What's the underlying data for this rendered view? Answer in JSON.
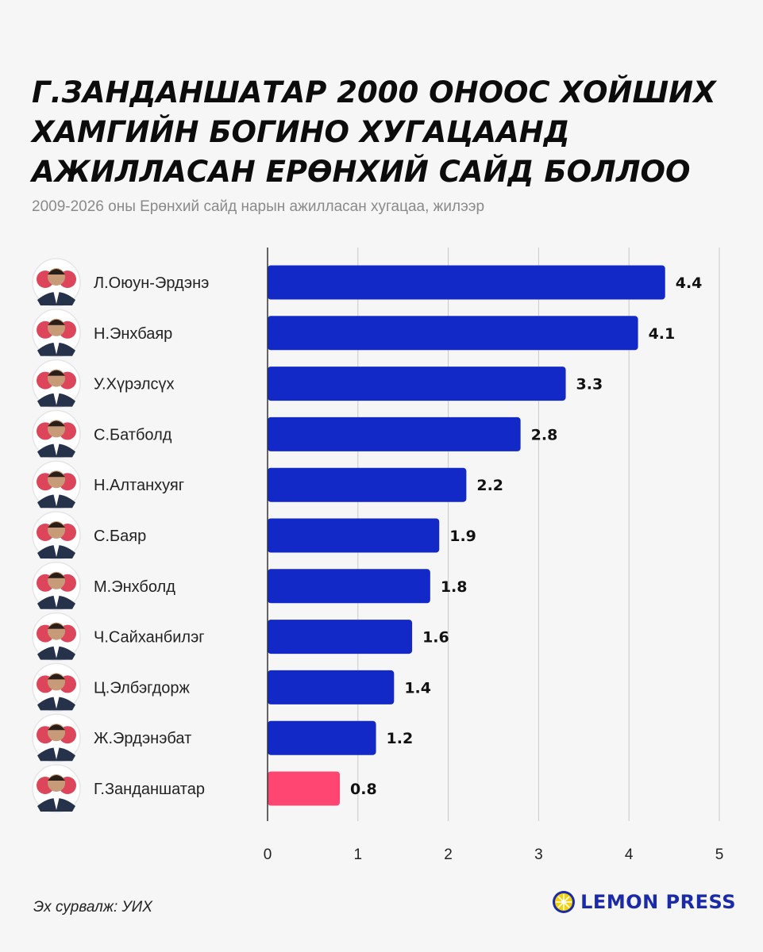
{
  "header": {
    "title_lines": [
      "Г.ЗАНДАНШАТАР 2000 ОНООС ХОЙШИХ",
      "ХАМГИЙН БОГИНО ХУГАЦААНД",
      "АЖИЛЛАСАН ЕРӨНХИЙ САЙД БОЛЛОО"
    ],
    "subtitle": "2009-2026 оны Ерөнхий сайд нарын ажилласан хугацаа, жилээр"
  },
  "chart_data": {
    "type": "bar",
    "orientation": "horizontal",
    "title": "Г.ЗАНДАНШАТАР 2000 ОНООС ХОЙШИХ ХАМГИЙН БОГИНО ХУГАЦААНД АЖИЛЛАСАН ЕРӨНХИЙ САЙД БОЛЛОО",
    "subtitle": "2009-2026 оны Ерөнхий сайд нарын ажилласан хугацаа, жилээр",
    "categories": [
      "Л.Оюун-Эрдэнэ",
      "Н.Энхбаяр",
      "У.Хүрэлсүх",
      "С.Батболд",
      "Н.Алтанхуяг",
      "С.Баяр",
      "М.Энхболд",
      "Ч.Сайханбилэг",
      "Ц.Элбэгдорж",
      "Ж.Эрдэнэбат",
      "Г.Занданшатар"
    ],
    "values": [
      4.4,
      4.1,
      3.3,
      2.8,
      2.2,
      1.9,
      1.8,
      1.6,
      1.4,
      1.2,
      0.8
    ],
    "value_labels": [
      "4.4",
      "4.1",
      "3.3",
      "2.8",
      "2.2",
      "1.9",
      "1.8",
      "1.6",
      "1.4",
      "1.2",
      "0.8"
    ],
    "highlight": [
      "Г.Занданшатар"
    ],
    "xlim": [
      0,
      5
    ],
    "xticks": [
      "0",
      "1",
      "2",
      "3",
      "4",
      "5"
    ],
    "xlabel": "",
    "ylabel": "",
    "grid": true,
    "colors": {
      "bar": "#1228c7",
      "highlight": "#ff4672",
      "grid": "#c9c9c9"
    }
  },
  "footer": {
    "source": "Эх сурвалж: УИХ",
    "brand": "LEMON PRESS",
    "brand_color": "#1b2aa8",
    "logo_color": "#f5d10a"
  },
  "icons": {
    "portrait": "person-portrait-icon",
    "logo": "lemon-logo-icon"
  }
}
